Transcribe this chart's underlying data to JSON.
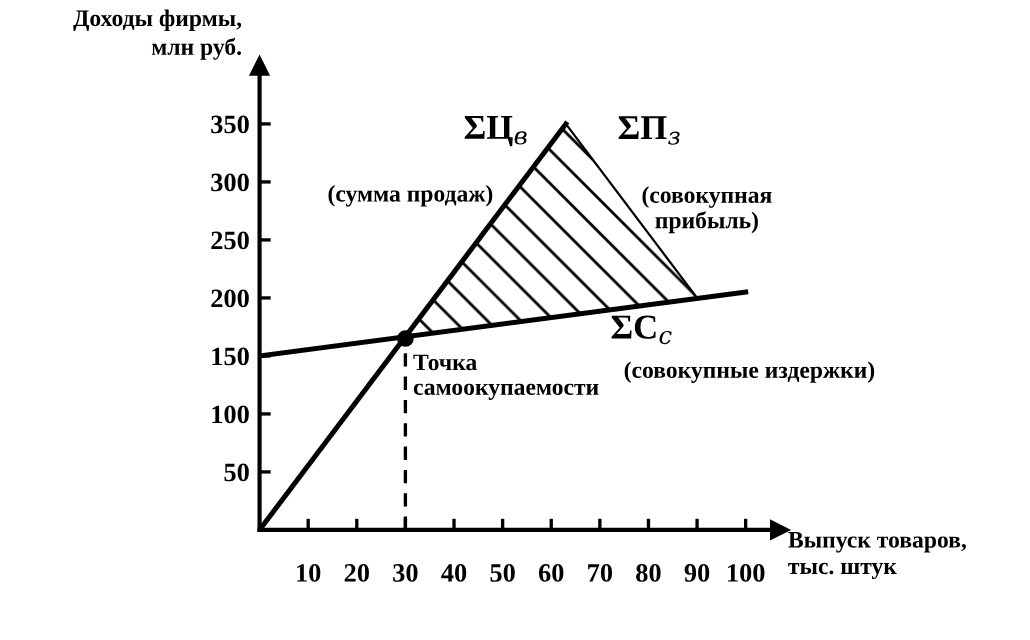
{
  "chart_data": {
    "type": "line",
    "xlabel": "Выпуск товаров,\nтыс. штук",
    "ylabel": "Доходы фирмы,\nмлн руб.",
    "xlim": [
      0,
      107
    ],
    "ylim": [
      0,
      400
    ],
    "xticks": [
      10,
      20,
      30,
      40,
      50,
      60,
      70,
      80,
      90,
      100
    ],
    "yticks": [
      50,
      100,
      150,
      200,
      250,
      300,
      350
    ],
    "grid": false,
    "legend": false,
    "series": [
      {
        "type": "area",
        "color": "#000000",
        "x": [
          30,
          63,
          90
        ],
        "values": [
          165,
          350,
          200
        ]
      },
      {
        "color": "#000000",
        "x": [
          0,
          63
        ],
        "values": [
          0,
          350
        ]
      },
      {
        "color": "#000000",
        "x": [
          0,
          100
        ],
        "values": [
          150,
          205
        ]
      },
      {
        "color": "#000000",
        "x": [
          30,
          30
        ],
        "values": [
          0,
          165
        ],
        "line_style": "dashed"
      },
      {
        "type": "scatter",
        "color": "#000000",
        "x": [
          30
        ],
        "values": [
          165
        ],
        "marker": "circle"
      }
    ],
    "annotations": [
      "ΣЦ$_{в}$",
      "(сумма продаж)",
      "ΣП$_{з}$",
      "(совокупная\nприбыль)",
      "ΣС$_{с}$",
      "(совокупные издержки)",
      "Точка\nсамоокупаемости"
    ]
  }
}
